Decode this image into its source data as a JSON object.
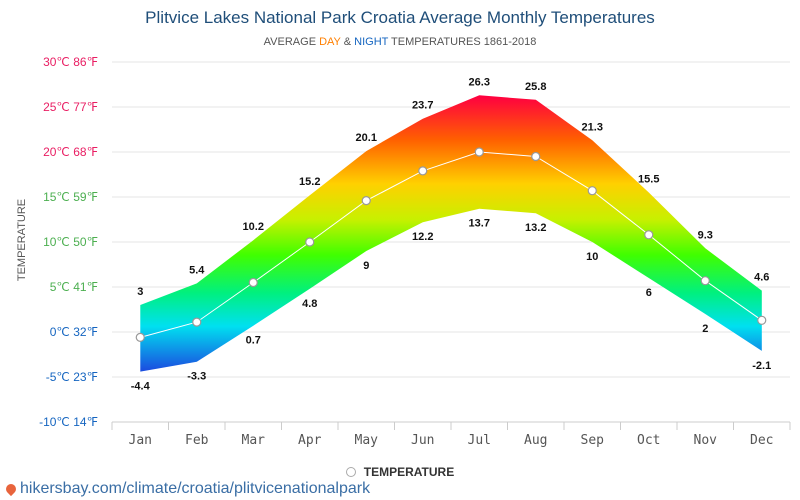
{
  "header": {
    "title": "Plitvice Lakes National Park Croatia Average Monthly Temperatures",
    "subtitle_pre": "AVERAGE ",
    "subtitle_day": "DAY",
    "subtitle_amp": " & ",
    "subtitle_night": "NIGHT",
    "subtitle_post": " TEMPERATURES 1861-2018"
  },
  "legend": {
    "label": "TEMPERATURE"
  },
  "footer": {
    "url": "hikersbay.com/climate/croatia/plitvicenationalpark"
  },
  "colors": {
    "title": "#1f4e79",
    "day": "#ff7f00",
    "night": "#1565c0",
    "link": "#3a6ea5"
  },
  "chart_data": {
    "type": "area",
    "categories": [
      "Jan",
      "Feb",
      "Mar",
      "Apr",
      "May",
      "Jun",
      "Jul",
      "Aug",
      "Sep",
      "Oct",
      "Nov",
      "Dec"
    ],
    "ylabel": "TEMPERATURE",
    "ylim": [
      -10,
      30
    ],
    "yticks": [
      {
        "value": 30,
        "label": "30℃ 86℉",
        "color": "#e91e63"
      },
      {
        "value": 25,
        "label": "25℃ 77℉",
        "color": "#e91e63"
      },
      {
        "value": 20,
        "label": "20℃ 68℉",
        "color": "#e91e63"
      },
      {
        "value": 15,
        "label": "15℃ 59℉",
        "color": "#4caf50"
      },
      {
        "value": 10,
        "label": "10℃ 50℉",
        "color": "#4caf50"
      },
      {
        "value": 5,
        "label": "5℃ 41℉",
        "color": "#4caf50"
      },
      {
        "value": 0,
        "label": "0℃ 32℉",
        "color": "#1565c0"
      },
      {
        "value": -5,
        "label": "-5℃ 23℉",
        "color": "#1565c0"
      },
      {
        "value": -10,
        "label": "-10℃ 14℉",
        "color": "#1565c0"
      }
    ],
    "series": [
      {
        "values": [
          3,
          5.4,
          10.2,
          15.2,
          20.1,
          23.7,
          26.3,
          25.8,
          21.3,
          15.5,
          9.3,
          4.6
        ]
      },
      {
        "values": [
          -4.4,
          -3.3,
          0.7,
          4.8,
          9,
          12.2,
          13.7,
          13.2,
          10,
          6,
          2,
          -2.1
        ]
      },
      {
        "name": "TEMPERATURE",
        "values": [
          -0.6,
          1.1,
          5.5,
          10,
          14.6,
          17.9,
          20,
          19.5,
          15.7,
          10.8,
          5.7,
          1.3
        ]
      }
    ],
    "grid": true,
    "legend_position": "bottom-center"
  }
}
